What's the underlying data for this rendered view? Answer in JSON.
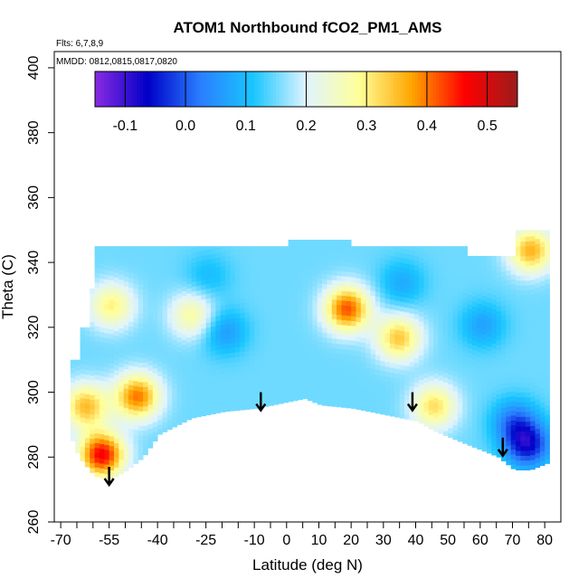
{
  "chart_data": {
    "type": "heatmap",
    "title": "ATOM1 Northbound fCO2_PM1_AMS",
    "notes": [
      "Flts: 6,7,8,9",
      "MMDD: 0812,0815,0817,0820"
    ],
    "xlabel": "Latitude (deg N)",
    "ylabel": "Theta (C)",
    "xlim": [
      -72,
      85
    ],
    "ylim": [
      260,
      405
    ],
    "x_ticks": [
      -70,
      -55,
      -40,
      -25,
      -10,
      0,
      10,
      20,
      30,
      40,
      50,
      60,
      70,
      80
    ],
    "x_minor_tick_step": 5,
    "y_ticks": [
      260,
      280,
      300,
      320,
      340,
      360,
      380,
      400
    ],
    "colorbar": {
      "range": [
        -0.15,
        0.55
      ],
      "ticks": [
        -0.1,
        0.0,
        0.1,
        0.2,
        0.3,
        0.4,
        0.5
      ],
      "tick_labels": [
        "-0.1",
        "0.0",
        "0.1",
        "0.2",
        "0.3",
        "0.4",
        "0.5"
      ],
      "colors": [
        "#8a2be2",
        "#0000c8",
        "#2a7fff",
        "#1ac6ff",
        "#e0f4ff",
        "#ffff99",
        "#ffa500",
        "#ff0000",
        "#9b1c1c"
      ]
    },
    "arrows_latitude": [
      -55,
      -8,
      39,
      67
    ],
    "hotspots": [
      {
        "lat": -58,
        "theta": 280,
        "value": 0.47
      },
      {
        "lat": -63,
        "theta": 295,
        "value": 0.35
      },
      {
        "lat": -47,
        "theta": 298,
        "value": 0.4
      },
      {
        "lat": -55,
        "theta": 326,
        "value": 0.3
      },
      {
        "lat": -30,
        "theta": 323,
        "value": 0.28
      },
      {
        "lat": 18,
        "theta": 325,
        "value": 0.42
      },
      {
        "lat": 34,
        "theta": 316,
        "value": 0.34
      },
      {
        "lat": 45,
        "theta": 295,
        "value": 0.32
      },
      {
        "lat": 74,
        "theta": 283,
        "value": -0.05
      },
      {
        "lat": 70,
        "theta": 290,
        "value": 0.02
      },
      {
        "lat": 5,
        "theta": 312,
        "value": 0.15
      },
      {
        "lat": -20,
        "theta": 318,
        "value": 0.06
      },
      {
        "lat": -25,
        "theta": 335,
        "value": 0.1
      },
      {
        "lat": 60,
        "theta": 320,
        "value": 0.07
      },
      {
        "lat": 35,
        "theta": 333,
        "value": 0.08
      },
      {
        "lat": 75,
        "theta": 343,
        "value": 0.36
      }
    ],
    "background_value": 0.15
  }
}
